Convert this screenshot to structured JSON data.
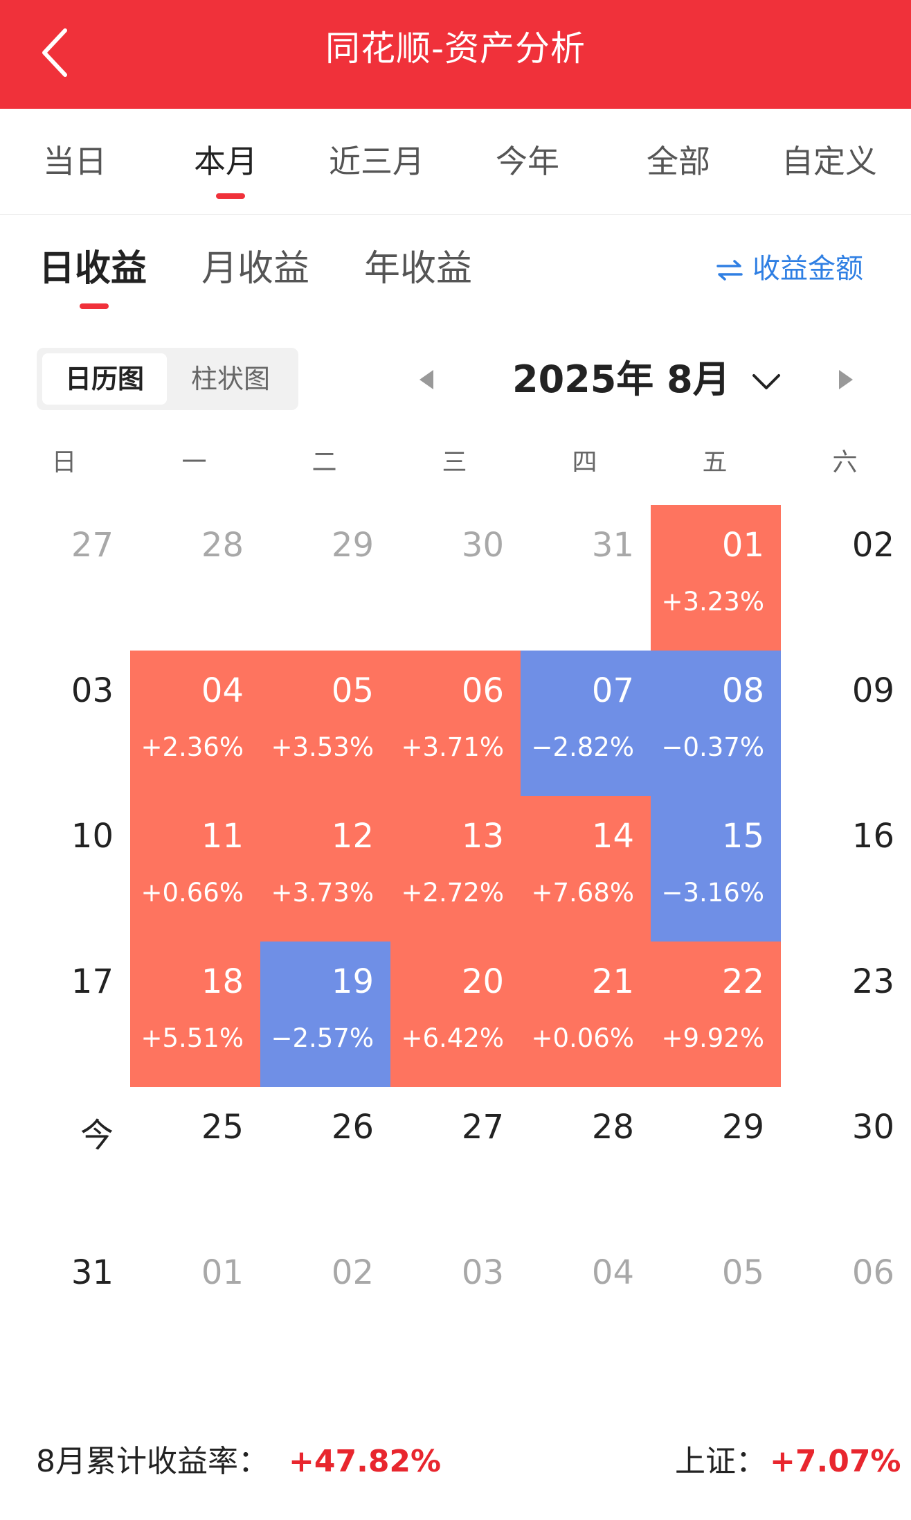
{
  "header": {
    "title": "同花顺-资产分析"
  },
  "period_tabs": [
    {
      "label": "当日",
      "active": false
    },
    {
      "label": "本月",
      "active": true
    },
    {
      "label": "近三月",
      "active": false
    },
    {
      "label": "今年",
      "active": false
    },
    {
      "label": "全部",
      "active": false
    },
    {
      "label": "自定义",
      "active": false
    }
  ],
  "profit_tabs": [
    {
      "label": "日收益",
      "active": true
    },
    {
      "label": "月收益",
      "active": false
    },
    {
      "label": "年收益",
      "active": false
    }
  ],
  "toggle_amount": {
    "label": "收益金额",
    "icon": "swap-icon"
  },
  "view_switch": [
    {
      "label": "日历图",
      "active": true
    },
    {
      "label": "柱状图",
      "active": false
    }
  ],
  "month_nav": {
    "label": "2025年 8月"
  },
  "weekdays": [
    "日",
    "一",
    "二",
    "三",
    "四",
    "五",
    "六"
  ],
  "colors": {
    "up": "#fe745f",
    "down": "#6f8fe6",
    "accent": "#f0313a",
    "link": "#2f7fe3"
  },
  "weeks": [
    [
      {
        "day": "27",
        "other": true
      },
      {
        "day": "28",
        "other": true
      },
      {
        "day": "29",
        "other": true
      },
      {
        "day": "30",
        "other": true
      },
      {
        "day": "31",
        "other": true
      },
      {
        "day": "01",
        "pct": "+3.23%",
        "dir": "up"
      },
      {
        "day": "02"
      }
    ],
    [
      {
        "day": "03"
      },
      {
        "day": "04",
        "pct": "+2.36%",
        "dir": "up"
      },
      {
        "day": "05",
        "pct": "+3.53%",
        "dir": "up"
      },
      {
        "day": "06",
        "pct": "+3.71%",
        "dir": "up"
      },
      {
        "day": "07",
        "pct": "−2.82%",
        "dir": "down"
      },
      {
        "day": "08",
        "pct": "−0.37%",
        "dir": "down"
      },
      {
        "day": "09"
      }
    ],
    [
      {
        "day": "10"
      },
      {
        "day": "11",
        "pct": "+0.66%",
        "dir": "up"
      },
      {
        "day": "12",
        "pct": "+3.73%",
        "dir": "up"
      },
      {
        "day": "13",
        "pct": "+2.72%",
        "dir": "up"
      },
      {
        "day": "14",
        "pct": "+7.68%",
        "dir": "up"
      },
      {
        "day": "15",
        "pct": "−3.16%",
        "dir": "down"
      },
      {
        "day": "16"
      }
    ],
    [
      {
        "day": "17"
      },
      {
        "day": "18",
        "pct": "+5.51%",
        "dir": "up"
      },
      {
        "day": "19",
        "pct": "−2.57%",
        "dir": "down"
      },
      {
        "day": "20",
        "pct": "+6.42%",
        "dir": "up"
      },
      {
        "day": "21",
        "pct": "+0.06%",
        "dir": "up"
      },
      {
        "day": "22",
        "pct": "+9.92%",
        "dir": "up"
      },
      {
        "day": "23"
      }
    ],
    [
      {
        "day": "今"
      },
      {
        "day": "25"
      },
      {
        "day": "26"
      },
      {
        "day": "27"
      },
      {
        "day": "28"
      },
      {
        "day": "29"
      },
      {
        "day": "30"
      }
    ],
    [
      {
        "day": "31"
      },
      {
        "day": "01",
        "other": true
      },
      {
        "day": "02",
        "other": true
      },
      {
        "day": "03",
        "other": true
      },
      {
        "day": "04",
        "other": true
      },
      {
        "day": "05",
        "other": true
      },
      {
        "day": "06",
        "other": true
      }
    ]
  ],
  "summary": {
    "month_label": "8月累计收益率：",
    "month_value": "+47.82%",
    "index_label": "上证：",
    "index_value": "+7.07%"
  }
}
